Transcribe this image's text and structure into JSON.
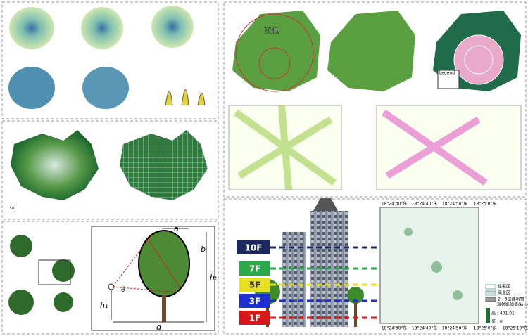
{
  "panel_a_label": "(a)",
  "map_labels": {
    "low": "较低",
    "legend": "Legend"
  },
  "diagram_labels": {
    "a": "a",
    "b": "b",
    "ht": "hₜ",
    "h1": "h₁",
    "d": "d",
    "theta": "θ"
  },
  "floors": [
    "10F",
    "7F",
    "5F",
    "3F",
    "1F"
  ],
  "coordinates": {
    "top": [
      "18°24'30\"东",
      "18°24'40\"东",
      "18°24'50\"东",
      "18°25'0\"东"
    ],
    "bottom": [
      "18°24'30\"东",
      "18°24'40\"东",
      "18°24'50\"东",
      "18°25'0\"东",
      "18°25'10\"东"
    ]
  },
  "legend": {
    "items": [
      "住宅区",
      "商业区",
      "2 - 3层建筑物"
    ],
    "title": "辐射影响值(km)",
    "high": "高 : 401.01",
    "low": "低 : 0"
  }
}
